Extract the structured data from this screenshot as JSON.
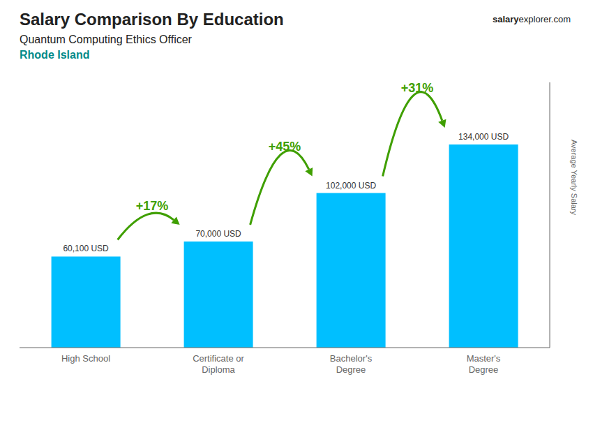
{
  "chart_data": {
    "type": "bar",
    "title": "Salary Comparison By Education",
    "subtitle": "Quantum Computing Ethics Officer",
    "location": "Rhode Island",
    "watermark": [
      "salary",
      "explorer.com"
    ],
    "ylabel": "Average Yearly Salary",
    "categories": [
      "High School",
      "Certificate or\nDiploma",
      "Bachelor's\nDegree",
      "Master's\nDegree"
    ],
    "values": [
      60100,
      70000,
      102000,
      134000
    ],
    "value_labels": [
      "60,100 USD",
      "70,000 USD",
      "102,000 USD",
      "134,000 USD"
    ],
    "data_labels": true,
    "color": "#00BFFF",
    "ylim": [
      0,
      175000
    ],
    "grid": false,
    "tick_labels": "x",
    "annotations": [
      {
        "text": "+17%",
        "from": 0,
        "to": 1
      },
      {
        "text": "+45%",
        "from": 1,
        "to": 2
      },
      {
        "text": "+31%",
        "from": 2,
        "to": 3
      }
    ]
  }
}
